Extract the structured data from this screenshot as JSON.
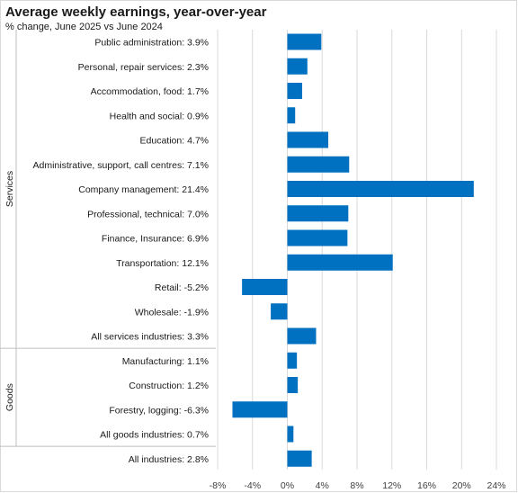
{
  "chart_data": {
    "type": "bar",
    "orientation": "horizontal",
    "title": "Average weekly earnings, year-over-year",
    "subtitle": "% change, June 2025 vs June 2024",
    "xlim": [
      -8,
      24
    ],
    "xticks": [
      -8,
      -4,
      0,
      4,
      8,
      12,
      16,
      20,
      24
    ],
    "xtick_labels": [
      "-8%",
      "-4%",
      "0%",
      "4%",
      "8%",
      "12%",
      "16%",
      "20%",
      "24%"
    ],
    "grid": true,
    "bar_color": "#0070C0",
    "groups": [
      {
        "name": "Services",
        "start": 0,
        "end": 12
      },
      {
        "name": "Goods",
        "start": 13,
        "end": 16
      }
    ],
    "categories": [
      "Public administration: 3.9%",
      "Personal, repair services: 2.3%",
      "Accommodation, food: 1.7%",
      "Health and social: 0.9%",
      "Education: 4.7%",
      "Administrative, support, call centres: 7.1%",
      "Company management: 21.4%",
      "Professional, technical: 7.0%",
      "Finance, Insurance: 6.9%",
      "Transportation: 12.1%",
      "Retail: -5.2%",
      "Wholesale: -1.9%",
      "All services industries: 3.3%",
      "Manufacturing: 1.1%",
      "Construction: 1.2%",
      "Forestry, logging: -6.3%",
      "All goods industries: 0.7%",
      "All industries: 2.8%"
    ],
    "values": [
      3.9,
      2.3,
      1.7,
      0.9,
      4.7,
      7.1,
      21.4,
      7.0,
      6.9,
      12.1,
      -5.2,
      -1.9,
      3.3,
      1.1,
      1.2,
      -6.3,
      0.7,
      2.8
    ]
  }
}
